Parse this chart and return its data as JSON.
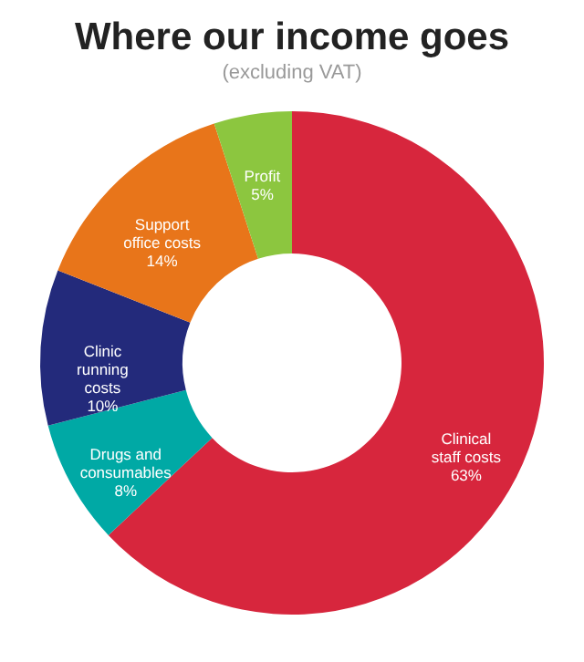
{
  "chart_data": {
    "type": "donut",
    "title": "Where our income goes",
    "subtitle": "(excluding VAT)",
    "categories": [
      "Clinical staff costs",
      "Drugs and consumables",
      "Clinic running costs",
      "Support office costs",
      "Profit"
    ],
    "values": [
      63,
      8,
      10,
      14,
      5
    ],
    "value_labels": [
      "63%",
      "8%",
      "10%",
      "14%",
      "5%"
    ],
    "colors": [
      "#d7263d",
      "#00a9a5",
      "#232a7b",
      "#e8751a",
      "#8cc63f"
    ],
    "legend": false
  }
}
